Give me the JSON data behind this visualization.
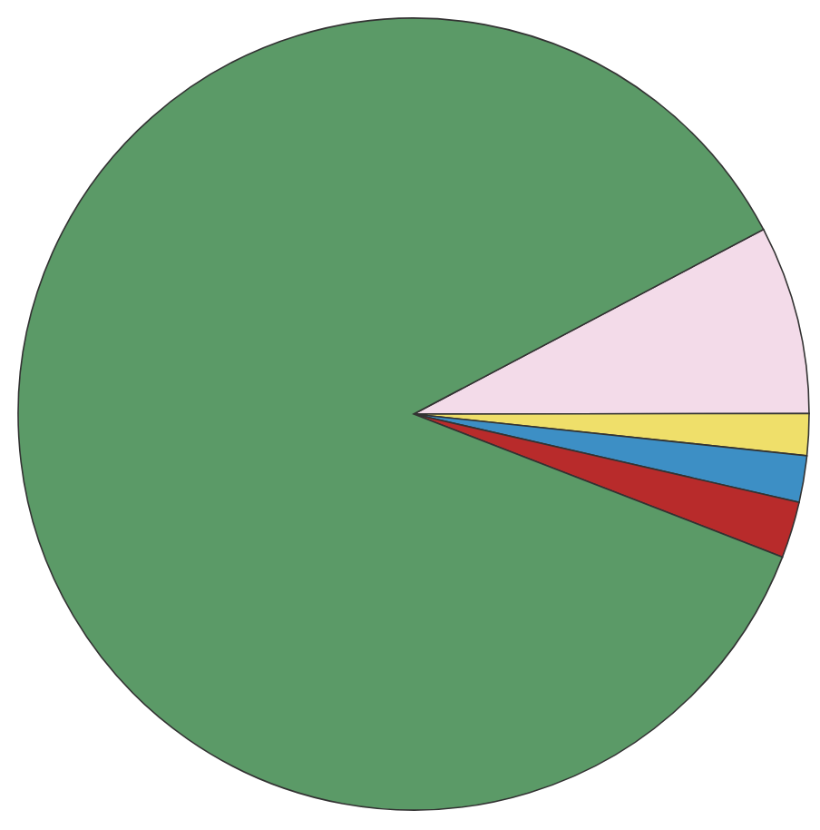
{
  "chart_data": {
    "type": "pie",
    "categories": [
      null,
      null,
      null,
      null,
      null
    ],
    "values": [
      7.7,
      1.7,
      1.9,
      2.3,
      86.4
    ],
    "colors": [
      "#f3dbe9",
      "#efdf6a",
      "#3d8fc5",
      "#b82b2b",
      "#5b9a67"
    ]
  }
}
